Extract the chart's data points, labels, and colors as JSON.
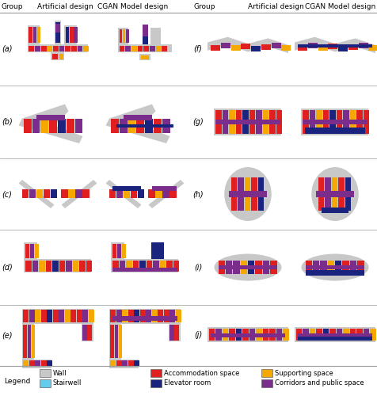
{
  "title_row": [
    "Group",
    "Artificial design",
    "CGAN Model design",
    "Group",
    "Artificial design",
    "CGAN Model design"
  ],
  "left_groups": [
    "(a)",
    "(b)",
    "(c)",
    "(d)",
    "(e)"
  ],
  "right_groups": [
    "(f)",
    "(g)",
    "(h)",
    "(i)",
    "(j)"
  ],
  "legend_items": [
    {
      "label": "Wall",
      "color": "#c8c8c8"
    },
    {
      "label": "Accommodation space",
      "color": "#e02020"
    },
    {
      "label": "Supporting space",
      "color": "#f5a800"
    },
    {
      "label": "Stairwell",
      "color": "#66ccee"
    },
    {
      "label": "Elevator room",
      "color": "#1a237e"
    },
    {
      "label": "Corridors and public space",
      "color": "#7b2d8b"
    }
  ],
  "figure_width": 4.77,
  "figure_height": 5.0,
  "dpi": 100,
  "bg_color": "#ffffff",
  "header_fontsize": 6.5,
  "group_label_fontsize": 7,
  "legend_fontsize": 6.0,
  "legend_title_fontsize": 6.5,
  "divider_color": "#999999"
}
